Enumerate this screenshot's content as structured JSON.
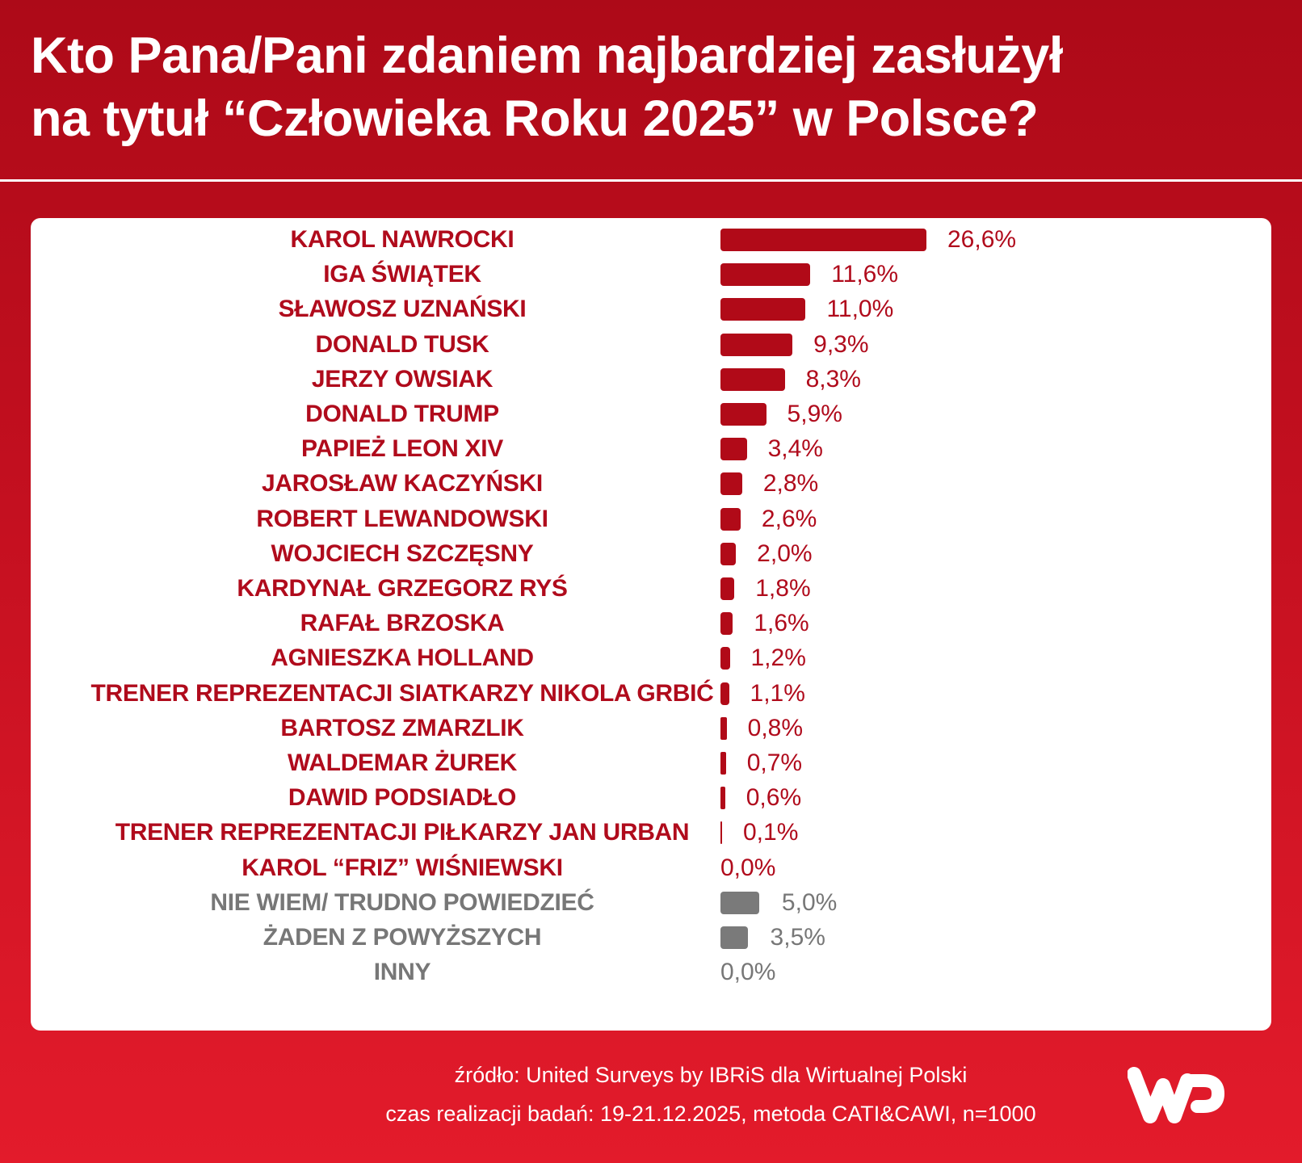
{
  "header": {
    "title_line1": "Kto Pana/Pani zdaniem najbardziej zasłużył",
    "title_line2": "na tytuł “Człowieka Roku 2025” w Polsce?"
  },
  "colors": {
    "header_red": "#ad0a18",
    "footer_red": "#e31b2b",
    "bar_red": "#b10a18",
    "bar_grey": "#7a7a7a",
    "label_red": "#b00b1c",
    "label_grey": "#777777"
  },
  "chart_data": {
    "type": "bar",
    "orientation": "horizontal",
    "title": "Kto Pana/Pani zdaniem najbardziej zasłużył na tytuł “Człowieka Roku 2025” w Polsce?",
    "xlabel": "",
    "ylabel": "",
    "grid": false,
    "legend": null,
    "categories": [
      "KAROL NAWROCKI",
      "IGA ŚWIĄTEK",
      "SŁAWOSZ UZNAŃSKI",
      "DONALD TUSK",
      "JERZY OWSIAK",
      "DONALD TRUMP",
      "PAPIEŻ LEON XIV",
      "JAROSŁAW KACZYŃSKI",
      "ROBERT LEWANDOWSKI",
      "WOJCIECH SZCZĘSNY",
      "KARDYNAŁ GRZEGORZ RYŚ",
      "RAFAŁ BRZOSKA",
      "AGNIESZKA HOLLAND",
      "TRENER REPREZENTACJI SIATKARZY NIKOLA GRBIĆ",
      "BARTOSZ ZMARZLIK",
      "WALDEMAR ŻUREK",
      "DAWID PODSIADŁO",
      "TRENER REPREZENTACJI PIŁKARZY JAN URBAN",
      "KAROL “FRIZ” WIŚNIEWSKI",
      "NIE WIEM/ TRUDNO POWIEDZIEĆ",
      "ŻADEN Z POWYŻSZYCH",
      "INNY"
    ],
    "values": [
      26.6,
      11.6,
      11.0,
      9.3,
      8.3,
      5.9,
      3.4,
      2.8,
      2.6,
      2.0,
      1.8,
      1.6,
      1.2,
      1.1,
      0.8,
      0.7,
      0.6,
      0.1,
      0.0,
      5.0,
      3.5,
      0.0
    ],
    "value_labels": [
      "26,6%",
      "11,6%",
      "11,0%",
      "9,3%",
      "8,3%",
      "5,9%",
      "3,4%",
      "2,8%",
      "2,6%",
      "2,0%",
      "1,8%",
      "1,6%",
      "1,2%",
      "1,1%",
      "0,8%",
      "0,7%",
      "0,6%",
      "0,1%",
      "0,0%",
      "5,0%",
      "3,5%",
      "0,0%"
    ],
    "bar_colors": [
      "red",
      "red",
      "red",
      "red",
      "red",
      "red",
      "red",
      "red",
      "red",
      "red",
      "red",
      "red",
      "red",
      "red",
      "red",
      "red",
      "red",
      "red",
      "red",
      "grey",
      "grey",
      "grey"
    ],
    "xlim": [
      0,
      27
    ]
  },
  "footer": {
    "source": "źródło: United Surveys by IBRiS dla Wirtualnej Polski",
    "method": "czas realizacji badań: 19-21.12.2025, metoda CATI&CAWI, n=1000",
    "logo": "wp-logo"
  }
}
